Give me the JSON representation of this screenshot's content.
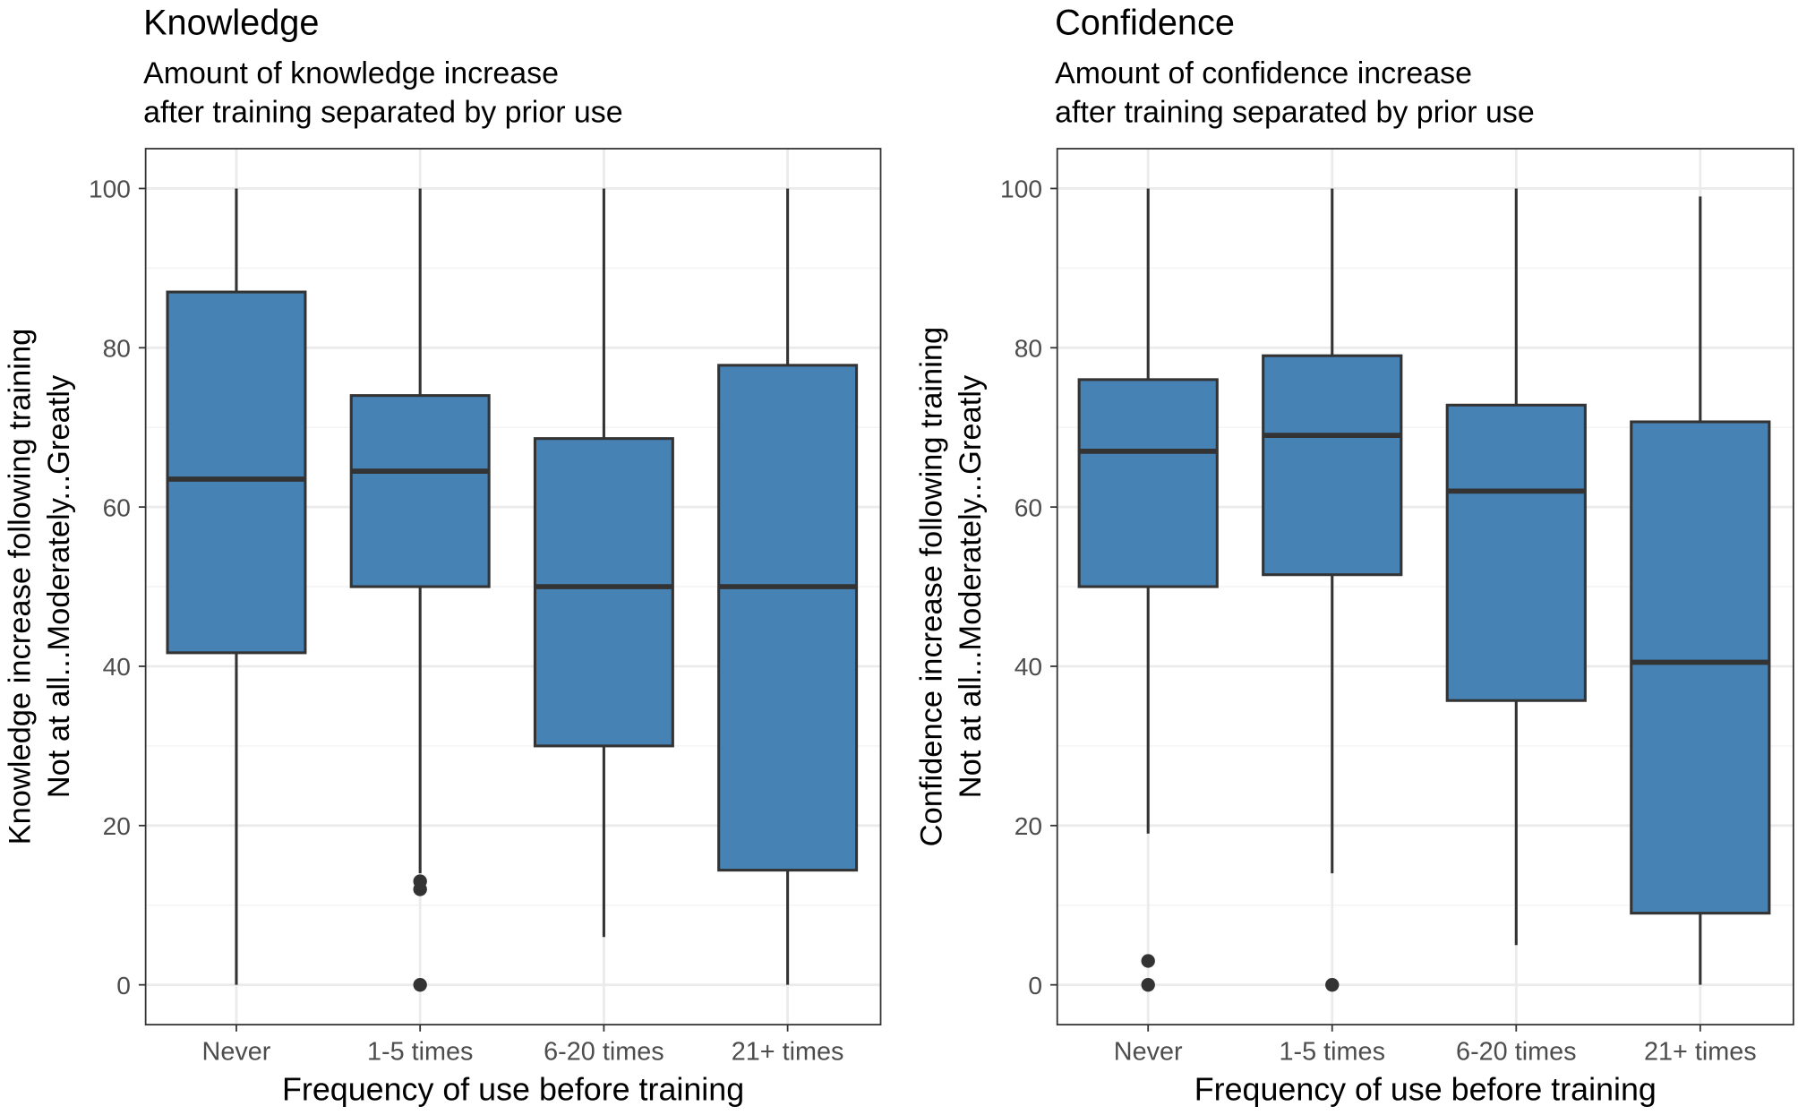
{
  "colors": {
    "box_fill": "#4682B4",
    "line": "#333333",
    "grid_major": "#EBEBEB",
    "grid_minor": "#F4F4F4",
    "tick_text": "#4D4D4D"
  },
  "chart_data": [
    {
      "type": "boxplot",
      "title": "Knowledge",
      "subtitle": [
        "Amount of knowledge increase",
        " after training separated by prior use"
      ],
      "xlabel": "Frequency of use before training",
      "ylabel": [
        "Knowledge increase following training",
        "Not at all...Moderately...Greatly"
      ],
      "ylim": [
        -5,
        105
      ],
      "yticks": [
        0,
        20,
        40,
        60,
        80,
        100
      ],
      "categories": [
        "Never",
        "1-5 times",
        "6-20 times",
        "21+ times"
      ],
      "boxes": [
        {
          "min": 0,
          "q1": 41.7,
          "median": 63.5,
          "q3": 87,
          "max": 100,
          "outliers": []
        },
        {
          "min": 14,
          "q1": 50,
          "median": 64.5,
          "q3": 74,
          "max": 100,
          "outliers": [
            13,
            12,
            0
          ]
        },
        {
          "min": 6,
          "q1": 30,
          "median": 50,
          "q3": 68.6,
          "max": 100,
          "outliers": []
        },
        {
          "min": 0,
          "q1": 14.4,
          "median": 50,
          "q3": 77.8,
          "max": 100,
          "outliers": []
        }
      ]
    },
    {
      "type": "boxplot",
      "title": "Confidence",
      "subtitle": [
        "Amount of confidence increase",
        " after training separated by prior use"
      ],
      "xlabel": "Frequency of use before training",
      "ylabel": [
        "Confidence increase following training",
        "Not at all...Moderately...Greatly"
      ],
      "ylim": [
        -5,
        105
      ],
      "yticks": [
        0,
        20,
        40,
        60,
        80,
        100
      ],
      "categories": [
        "Never",
        "1-5 times",
        "6-20 times",
        "21+ times"
      ],
      "boxes": [
        {
          "min": 19,
          "q1": 50,
          "median": 67,
          "q3": 76,
          "max": 100,
          "outliers": [
            3,
            0
          ]
        },
        {
          "min": 14,
          "q1": 51.5,
          "median": 69,
          "q3": 79,
          "max": 100,
          "outliers": [
            0
          ]
        },
        {
          "min": 5,
          "q1": 35.7,
          "median": 62,
          "q3": 72.8,
          "max": 100,
          "outliers": []
        },
        {
          "min": 0,
          "q1": 9,
          "median": 40.5,
          "q3": 70.7,
          "max": 99,
          "outliers": []
        }
      ]
    }
  ]
}
